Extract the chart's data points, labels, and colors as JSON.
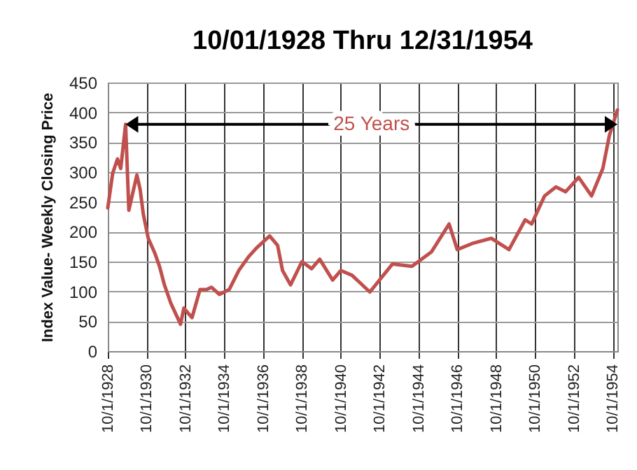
{
  "chart_data": {
    "type": "line",
    "title": "10/01/1928 Thru 12/31/1954",
    "ylabel": "Index Value- Weekly Closing Price",
    "x": [
      "1928-10-01",
      "1929-01",
      "1929-04",
      "1929-06",
      "1929-09",
      "1929-11",
      "1930-01",
      "1930-04",
      "1930-06",
      "1930-08",
      "1930-11",
      "1931-03",
      "1931-06",
      "1931-09",
      "1932-01",
      "1932-07",
      "1932-09",
      "1933-02",
      "1933-07",
      "1933-11",
      "1934-02",
      "1934-07",
      "1935-01",
      "1935-07",
      "1936-01",
      "1936-06",
      "1937-02",
      "1937-07",
      "1937-10",
      "1938-03",
      "1938-10",
      "1939-04",
      "1939-09",
      "1940-05",
      "1940-10",
      "1941-05",
      "1942-04",
      "1943-06",
      "1944-06",
      "1945-06",
      "1946-05",
      "1946-10",
      "1947-08",
      "1948-07",
      "1949-06",
      "1950-04",
      "1950-08",
      "1951-04",
      "1951-11",
      "1952-05",
      "1953-01",
      "1953-09",
      "1954-04",
      "1954-08",
      "1954-12-31"
    ],
    "series": [
      {
        "color": "#c0504d",
        "values": [
          240,
          298,
          322,
          306,
          380,
          236,
          260,
          295,
          271,
          229,
          189,
          165,
          142,
          111,
          80,
          45,
          72,
          56,
          103,
          103,
          107,
          95,
          103,
          135,
          158,
          173,
          193,
          177,
          135,
          111,
          150,
          138,
          154,
          119,
          135,
          127,
          99,
          146,
          142,
          166,
          213,
          170,
          181,
          189,
          170,
          220,
          213,
          260,
          275,
          267,
          291,
          260,
          306,
          361,
          404
        ]
      }
    ],
    "xlim": [
      "1928-10-01",
      "1954-12-31"
    ],
    "xticks": [
      {
        "value": "1928-10-01",
        "label": "10/1/1928"
      },
      {
        "value": "1930-10-01",
        "label": "10/1/1930"
      },
      {
        "value": "1932-10-01",
        "label": "10/1/1932"
      },
      {
        "value": "1934-10-01",
        "label": "10/1/1934"
      },
      {
        "value": "1936-10-01",
        "label": "10/1/1936"
      },
      {
        "value": "1938-10-01",
        "label": "10/1/1938"
      },
      {
        "value": "1940-10-01",
        "label": "10/1/1940"
      },
      {
        "value": "1942-10-01",
        "label": "10/1/1942"
      },
      {
        "value": "1944-10-01",
        "label": "10/1/1944"
      },
      {
        "value": "1946-10-01",
        "label": "10/1/1946"
      },
      {
        "value": "1948-10-01",
        "label": "10/1/1948"
      },
      {
        "value": "1950-10-01",
        "label": "10/1/1950"
      },
      {
        "value": "1952-10-01",
        "label": "10/1/1952"
      },
      {
        "value": "1954-10-01",
        "label": "10/1/1954"
      }
    ],
    "ylim": [
      0,
      450
    ],
    "yticks": [
      0,
      50,
      100,
      150,
      200,
      250,
      300,
      350,
      400,
      450
    ],
    "grid": true,
    "marker": "none",
    "line_style": "solid",
    "annotations": [
      "25 Years"
    ]
  }
}
